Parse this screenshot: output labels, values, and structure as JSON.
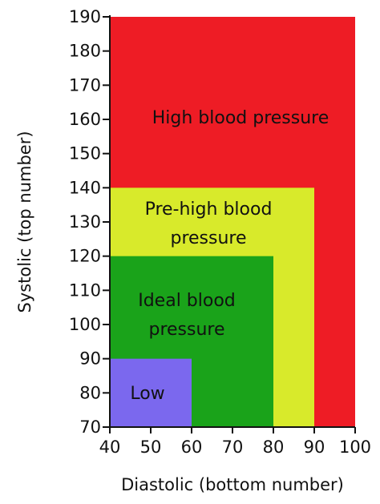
{
  "chart_data": {
    "type": "heatmap",
    "title": "",
    "xlabel": "Diastolic (bottom number)",
    "ylabel": "Systolic (top number)",
    "xlim": [
      40,
      100
    ],
    "ylim": [
      70,
      190
    ],
    "x_ticks": [
      40,
      50,
      60,
      70,
      80,
      90,
      100
    ],
    "y_ticks": [
      70,
      80,
      90,
      100,
      110,
      120,
      130,
      140,
      150,
      160,
      170,
      180,
      190
    ],
    "grid": false,
    "regions": [
      {
        "key": "high",
        "lines": [
          "High blood pressure"
        ],
        "x_range": [
          40,
          100
        ],
        "y_range": [
          70,
          190
        ],
        "color": "#ee1c25"
      },
      {
        "key": "prehigh",
        "lines": [
          "Pre-high blood",
          "pressure"
        ],
        "x_range": [
          40,
          90
        ],
        "y_range": [
          70,
          140
        ],
        "color": "#d8ea2b"
      },
      {
        "key": "ideal",
        "lines": [
          "Ideal blood",
          "pressure"
        ],
        "x_range": [
          40,
          80
        ],
        "y_range": [
          70,
          120
        ],
        "color": "#1aa31a"
      },
      {
        "key": "low",
        "lines": [
          "Low"
        ],
        "x_range": [
          40,
          60
        ],
        "y_range": [
          70,
          90
        ],
        "color": "#7b68ee"
      }
    ]
  }
}
